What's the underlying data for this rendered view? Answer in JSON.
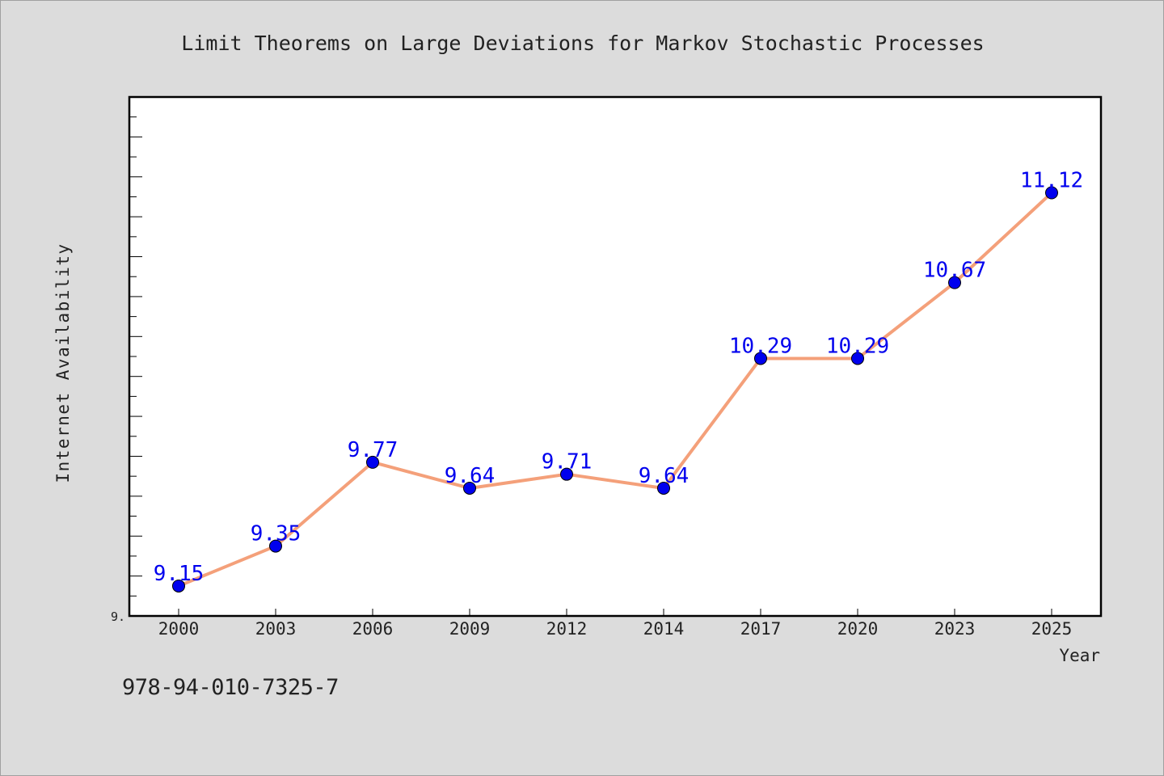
{
  "colors": {
    "background": "#dcdcdc",
    "plot_background": "#ffffff",
    "line": "#f4a07a",
    "marker": "#0000ee",
    "label": "#0000ee",
    "text": "#222222"
  },
  "footer": {
    "isbn": "978-94-010-7325-7"
  },
  "chart_data": {
    "type": "line",
    "title": "Limit Theorems on Large Deviations for Markov Stochastic Processes",
    "xlabel": "Year",
    "ylabel": "Internet Availability",
    "categories": [
      "2000",
      "2003",
      "2006",
      "2009",
      "2012",
      "2014",
      "2017",
      "2020",
      "2023",
      "2025"
    ],
    "series": [
      {
        "values": [
          9.15,
          9.35,
          9.77,
          9.64,
          9.71,
          9.64,
          10.29,
          10.29,
          10.67,
          11.12
        ],
        "data_labels": [
          "9.15",
          "9.35",
          "9.77",
          "9.64",
          "9.71",
          "9.64",
          "10.29",
          "10.29",
          "10.67",
          "11.12"
        ]
      }
    ],
    "ylim": [
      9.0,
      11.6
    ],
    "y_tick_label": "9.",
    "grid": false,
    "legend": "none"
  }
}
